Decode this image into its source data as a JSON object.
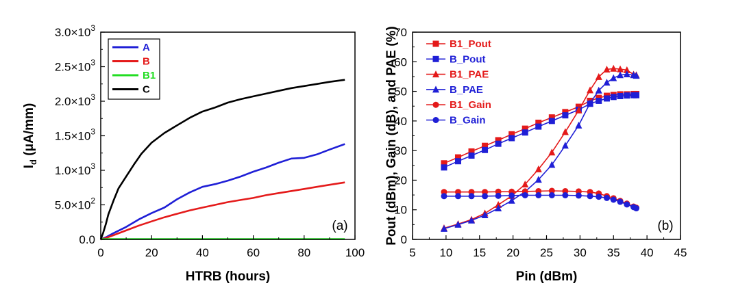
{
  "chart_data": [
    {
      "type": "line",
      "panel_label": "(a)",
      "xlabel": "HTRB (hours)",
      "ylabel_main": "I",
      "ylabel_sub": "d",
      "ylabel_rest": " (μA/mm)",
      "xlim": [
        0,
        100
      ],
      "ylim": [
        0,
        3000
      ],
      "x_ticks": [
        0,
        20,
        40,
        60,
        80,
        100
      ],
      "x_tick_labels": [
        "0",
        "20",
        "40",
        "60",
        "80",
        "100"
      ],
      "y_ticks": [
        0,
        500,
        1000,
        1500,
        2000,
        2500,
        3000
      ],
      "y_tick_labels": [
        {
          "mant": "0.0",
          "exp": ""
        },
        {
          "mant": "5.0×10",
          "exp": "2"
        },
        {
          "mant": "1.0×10",
          "exp": "3"
        },
        {
          "mant": "1.5×10",
          "exp": "3"
        },
        {
          "mant": "2.0×10",
          "exp": "3"
        },
        {
          "mant": "2.5×10",
          "exp": "3"
        },
        {
          "mant": "3.0×10",
          "exp": "3"
        }
      ],
      "legend_position": "top-left",
      "series": [
        {
          "name": "A",
          "color": "#1f1fd6",
          "x": [
            0,
            2,
            5,
            10,
            15,
            20,
            25,
            30,
            35,
            40,
            45,
            50,
            55,
            60,
            65,
            70,
            75,
            80,
            85,
            90,
            96
          ],
          "y": [
            0,
            30,
            90,
            180,
            290,
            380,
            460,
            580,
            680,
            760,
            800,
            850,
            910,
            980,
            1040,
            1110,
            1170,
            1180,
            1230,
            1300,
            1380
          ]
        },
        {
          "name": "B",
          "color": "#e41a1a",
          "x": [
            0,
            2,
            5,
            10,
            15,
            20,
            25,
            30,
            35,
            40,
            45,
            50,
            55,
            60,
            65,
            70,
            75,
            80,
            85,
            90,
            96
          ],
          "y": [
            0,
            20,
            60,
            130,
            200,
            260,
            320,
            370,
            420,
            460,
            500,
            540,
            570,
            600,
            640,
            670,
            700,
            730,
            760,
            790,
            825
          ]
        },
        {
          "name": "B1",
          "color": "#22dd22",
          "x": [
            0,
            20,
            40,
            60,
            80,
            96
          ],
          "y": [
            5,
            5,
            5,
            5,
            5,
            5
          ]
        },
        {
          "name": "C",
          "color": "#000000",
          "x": [
            0,
            1,
            2,
            3,
            5,
            7,
            10,
            13,
            16,
            20,
            25,
            30,
            35,
            40,
            45,
            50,
            55,
            60,
            65,
            70,
            75,
            80,
            85,
            90,
            96
          ],
          "y": [
            0,
            100,
            220,
            360,
            560,
            740,
            910,
            1080,
            1240,
            1400,
            1540,
            1650,
            1760,
            1850,
            1910,
            1980,
            2030,
            2070,
            2110,
            2150,
            2190,
            2220,
            2250,
            2280,
            2310
          ]
        }
      ]
    },
    {
      "type": "line",
      "panel_label": "(b)",
      "xlabel": "Pin (dBm)",
      "ylabel": "Pout (dBm), Gain (dB), and PAE (%)",
      "xlim": [
        5,
        45
      ],
      "ylim": [
        0,
        70
      ],
      "x_ticks": [
        5,
        10,
        15,
        20,
        25,
        30,
        35,
        40,
        45
      ],
      "x_tick_labels": [
        "5",
        "10",
        "15",
        "20",
        "25",
        "30",
        "35",
        "40",
        "45"
      ],
      "y_ticks": [
        0,
        10,
        20,
        30,
        40,
        50,
        60,
        70
      ],
      "y_tick_labels": [
        "0",
        "10",
        "20",
        "30",
        "40",
        "50",
        "60",
        "70"
      ],
      "legend_position": "top-left",
      "series": [
        {
          "name": "B1_Pout",
          "color": "#e41a1a",
          "marker": "square",
          "x": [
            9.7,
            11.8,
            13.8,
            15.8,
            17.8,
            19.8,
            21.8,
            23.8,
            25.8,
            27.8,
            29.8,
            31.5,
            32.8,
            34.0,
            35.0,
            36.0,
            37.0,
            38.0,
            38.4
          ],
          "y": [
            25.7,
            27.7,
            29.7,
            31.6,
            33.5,
            35.5,
            37.4,
            39.4,
            41.2,
            43.0,
            44.8,
            46.8,
            47.8,
            48.5,
            48.8,
            49.0,
            49.0,
            49.1,
            49.1
          ]
        },
        {
          "name": "B_Pout",
          "color": "#1f1fd6",
          "marker": "square",
          "x": [
            9.7,
            11.8,
            13.8,
            15.8,
            17.8,
            19.8,
            21.8,
            23.8,
            25.8,
            27.8,
            29.8,
            31.5,
            32.8,
            34.0,
            35.0,
            36.0,
            37.0,
            38.0,
            38.4
          ],
          "y": [
            24.3,
            26.4,
            28.3,
            30.2,
            32.3,
            34.2,
            36.1,
            38.1,
            40.0,
            41.9,
            43.8,
            45.8,
            46.8,
            47.6,
            48.1,
            48.4,
            48.6,
            48.7,
            48.7
          ]
        },
        {
          "name": "B1_PAE",
          "color": "#e41a1a",
          "marker": "triangle",
          "x": [
            9.7,
            11.8,
            13.8,
            15.8,
            17.8,
            19.8,
            21.8,
            23.8,
            25.8,
            27.8,
            29.8,
            31.5,
            32.8,
            34.0,
            35.0,
            36.0,
            37.0,
            38.0,
            38.4
          ],
          "y": [
            3.8,
            5.2,
            6.7,
            8.8,
            11.7,
            14.7,
            18.6,
            23.7,
            29.4,
            36.3,
            43.6,
            50.4,
            54.9,
            57.4,
            57.7,
            57.5,
            57.2,
            55.7,
            55.5
          ]
        },
        {
          "name": "B_PAE",
          "color": "#1f1fd6",
          "marker": "triangle",
          "x": [
            9.7,
            11.8,
            13.8,
            15.8,
            17.8,
            19.8,
            21.8,
            23.8,
            25.8,
            27.8,
            29.8,
            31.5,
            32.8,
            34.0,
            35.0,
            36.0,
            37.0,
            38.0,
            38.4
          ],
          "y": [
            3.6,
            5.0,
            6.4,
            8.2,
            10.5,
            13.1,
            16.1,
            20.2,
            25.2,
            31.7,
            38.5,
            46.0,
            50.3,
            53.0,
            54.5,
            55.5,
            55.8,
            55.5,
            55.3
          ]
        },
        {
          "name": "B1_Gain",
          "color": "#e41a1a",
          "marker": "circle",
          "x": [
            9.7,
            11.8,
            13.8,
            15.8,
            17.8,
            19.8,
            21.8,
            23.8,
            25.8,
            27.8,
            29.8,
            31.5,
            32.8,
            34.0,
            35.0,
            36.0,
            37.0,
            38.0,
            38.4
          ],
          "y": [
            16.0,
            16.0,
            16.0,
            16.0,
            16.1,
            16.1,
            16.2,
            16.3,
            16.4,
            16.3,
            16.2,
            16.0,
            15.5,
            14.6,
            13.9,
            13.0,
            12.1,
            11.1,
            10.7
          ]
        },
        {
          "name": "B_Gain",
          "color": "#1f1fd6",
          "marker": "circle",
          "x": [
            9.7,
            11.8,
            13.8,
            15.8,
            17.8,
            19.8,
            21.8,
            23.8,
            25.8,
            27.8,
            29.8,
            31.5,
            32.8,
            34.0,
            35.0,
            36.0,
            37.0,
            38.0,
            38.4
          ],
          "y": [
            14.6,
            14.6,
            14.6,
            14.6,
            14.7,
            14.8,
            14.9,
            14.9,
            14.9,
            14.9,
            14.8,
            14.6,
            14.4,
            14.0,
            13.4,
            12.7,
            11.8,
            10.9,
            10.5
          ]
        }
      ]
    }
  ]
}
